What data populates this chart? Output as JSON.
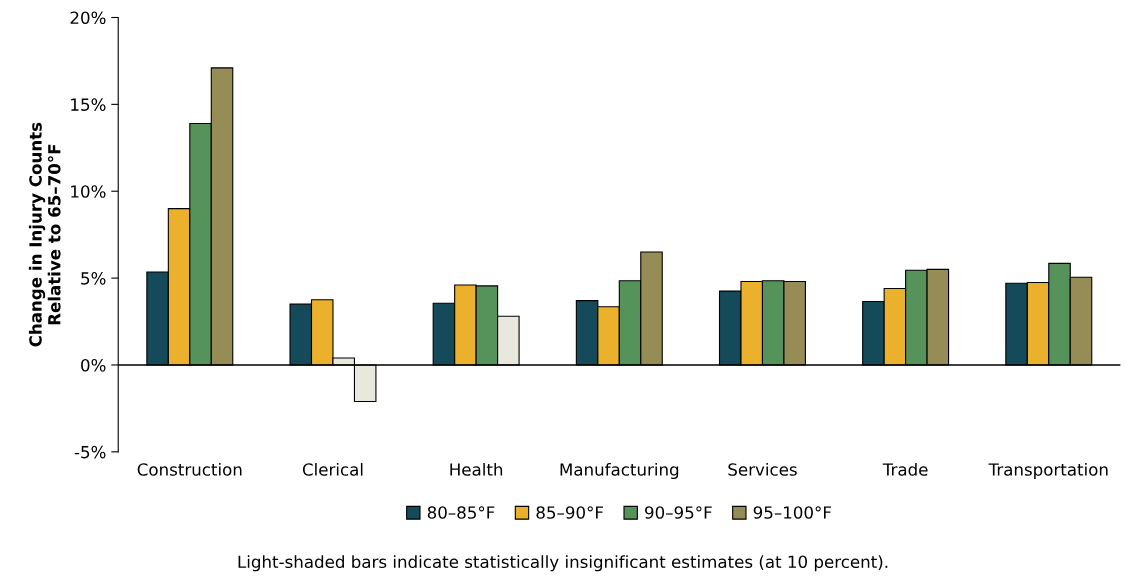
{
  "chart_data": {
    "type": "bar",
    "ylabel": "Change in Injury Counts\nRelative to 65–70°F",
    "categories": [
      "Construction",
      "Clerical",
      "Health",
      "Manufacturing",
      "Services",
      "Trade",
      "Transportation"
    ],
    "series": [
      {
        "name": "80–85°F",
        "color": "#154a5a",
        "values": [
          5.35,
          3.5,
          3.55,
          3.7,
          4.25,
          3.65,
          4.7
        ]
      },
      {
        "name": "85–90°F",
        "color": "#ebb02c",
        "values": [
          9.0,
          3.75,
          4.6,
          3.35,
          4.8,
          4.4,
          4.75
        ]
      },
      {
        "name": "90–95°F",
        "color": "#55935b",
        "colors": [
          "#55935b",
          "#e9e8dc",
          "#55935b",
          "#55935b",
          "#55935b",
          "#55935b",
          "#55935b"
        ],
        "values": [
          13.9,
          0.4,
          4.55,
          4.85,
          4.85,
          5.45,
          5.85
        ]
      },
      {
        "name": "95–100°F",
        "color": "#968c56",
        "colors": [
          "#968c56",
          "#e9e8dc",
          "#e9e8dc",
          "#968c56",
          "#968c56",
          "#968c56",
          "#968c56"
        ],
        "values": [
          17.1,
          -2.1,
          2.8,
          6.5,
          4.8,
          5.5,
          5.05
        ]
      }
    ],
    "ylim": [
      -5,
      20
    ],
    "yticks": [
      {
        "value": -5,
        "label": "-5%"
      },
      {
        "value": 0,
        "label": "0%"
      },
      {
        "value": 5,
        "label": "5%"
      },
      {
        "value": 10,
        "label": "10%"
      },
      {
        "value": 15,
        "label": "15%"
      },
      {
        "value": 20,
        "label": "20%"
      }
    ],
    "legend": "bottom",
    "grid": false,
    "ref_lines": [
      {
        "axis": "y",
        "value": 0,
        "color": "#000000"
      }
    ],
    "annotations": [
      "Light-shaded bars indicate statistically insignificant estimates (at 10 percent)."
    ]
  }
}
